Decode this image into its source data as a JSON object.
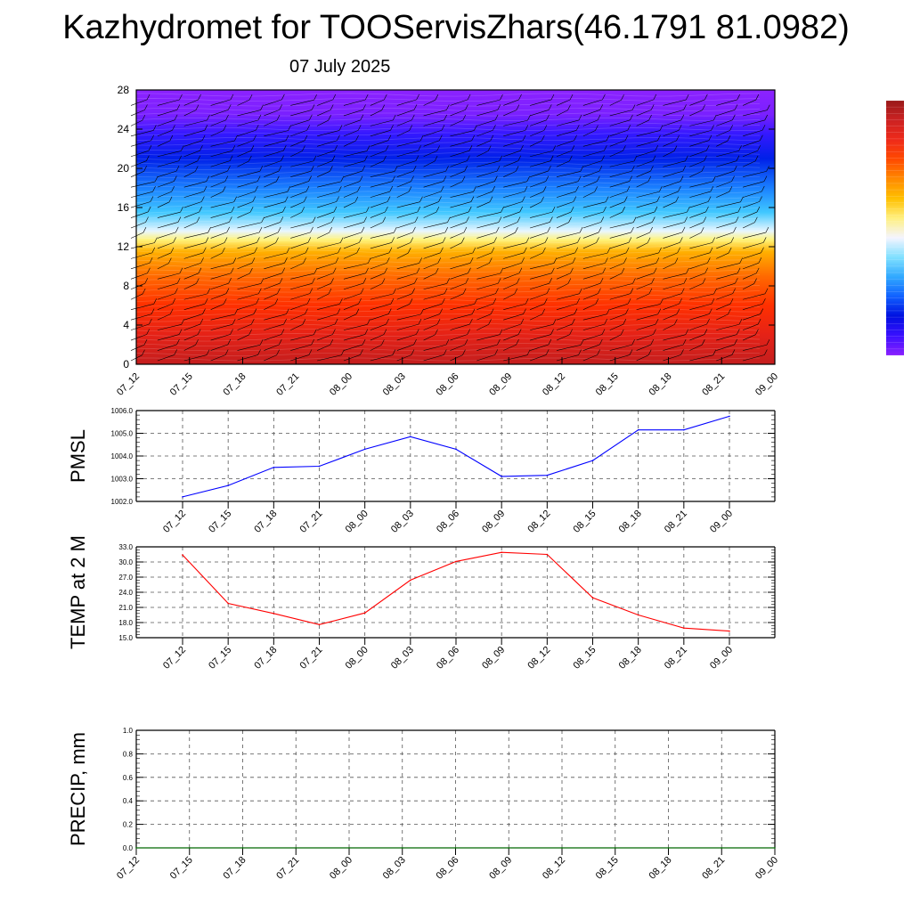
{
  "title": "Kazhydromet for TOOServisZhars(46.1791 81.0982)",
  "subtitle": "07 July 2025",
  "colors": {
    "pmsl_line": "#0000ff",
    "temp_line": "#ff0000",
    "precip_line": "#008000",
    "grid": "#555555",
    "colorbar": [
      "#9a1a1a",
      "#cc2222",
      "#ee2a1a",
      "#ff4a00",
      "#ff8a00",
      "#ffc000",
      "#fff080",
      "#f4f4ff",
      "#80e0ff",
      "#30a8ff",
      "#1060ff",
      "#0010e0",
      "#3a10ff",
      "#8a20ff"
    ]
  },
  "chart_data": [
    {
      "type": "heatmap",
      "x": [
        "07_12",
        "07_15",
        "07_18",
        "07_21",
        "08_00",
        "08_03",
        "08_06",
        "08_09",
        "08_12",
        "08_15",
        "08_18",
        "08_21",
        "09_00"
      ],
      "yticks": [
        "0",
        "4",
        "8",
        "12",
        "16",
        "20",
        "24",
        "28"
      ],
      "ylim": [
        0,
        28
      ],
      "color_stops": [
        {
          "y": 0,
          "color": "#c41e1e"
        },
        {
          "y": 3,
          "color": "#e52217"
        },
        {
          "y": 6,
          "color": "#ff3000"
        },
        {
          "y": 9,
          "color": "#ff6a00"
        },
        {
          "y": 11.5,
          "color": "#ffb000"
        },
        {
          "y": 12.7,
          "color": "#fff37a"
        },
        {
          "y": 13.6,
          "color": "#e8f6ff"
        },
        {
          "y": 15.5,
          "color": "#40c8ff"
        },
        {
          "y": 18,
          "color": "#1a80ff"
        },
        {
          "y": 21,
          "color": "#0020e8"
        },
        {
          "y": 23.5,
          "color": "#3418ff"
        },
        {
          "y": 25.5,
          "color": "#7a20ff"
        },
        {
          "y": 28,
          "color": "#8c22ff"
        }
      ],
      "wind_barbs": true
    },
    {
      "type": "line",
      "ylabel": "PMSL",
      "x": [
        "07_12",
        "07_15",
        "07_18",
        "07_21",
        "08_00",
        "08_03",
        "08_06",
        "08_09",
        "08_12",
        "08_15",
        "08_18",
        "08_21",
        "09_00"
      ],
      "series": [
        {
          "values": [
            1002.2,
            1002.7,
            1003.5,
            1003.55,
            1004.3,
            1004.85,
            1004.3,
            1003.1,
            1003.15,
            1003.8,
            1005.15,
            1005.15,
            1005.75
          ]
        }
      ],
      "ylim": [
        1002.0,
        1006.0
      ],
      "yticks": [
        "1002.0",
        "1003.0",
        "1004.0",
        "1005.0",
        "1006.0"
      ],
      "grid": true
    },
    {
      "type": "line",
      "ylabel": "TEMP at 2 M",
      "x": [
        "07_12",
        "07_15",
        "07_18",
        "07_21",
        "08_00",
        "08_03",
        "08_06",
        "08_09",
        "08_12",
        "08_15",
        "08_18",
        "08_21",
        "09_00"
      ],
      "series": [
        {
          "values": [
            31.4,
            21.8,
            19.8,
            17.6,
            19.9,
            26.4,
            30.1,
            31.9,
            31.5,
            22.9,
            19.5,
            16.9,
            16.3
          ]
        }
      ],
      "ylim": [
        15.0,
        33.0
      ],
      "yticks": [
        "15.0",
        "18.0",
        "21.0",
        "24.0",
        "27.0",
        "30.0",
        "33.0"
      ],
      "grid": true
    },
    {
      "type": "line",
      "ylabel": "PRECIP, mm",
      "x": [
        "07_12",
        "07_15",
        "07_18",
        "07_21",
        "08_00",
        "08_03",
        "08_06",
        "08_09",
        "08_12",
        "08_15",
        "08_18",
        "08_21",
        "09_00"
      ],
      "series": [
        {
          "values": [
            0,
            0,
            0,
            0,
            0,
            0,
            0,
            0,
            0,
            0,
            0,
            0,
            0
          ]
        }
      ],
      "ylim": [
        0.0,
        1.0
      ],
      "yticks": [
        "0.0",
        "0.2",
        "0.4",
        "0.6",
        "0.8",
        "1.0"
      ],
      "grid": true
    }
  ]
}
